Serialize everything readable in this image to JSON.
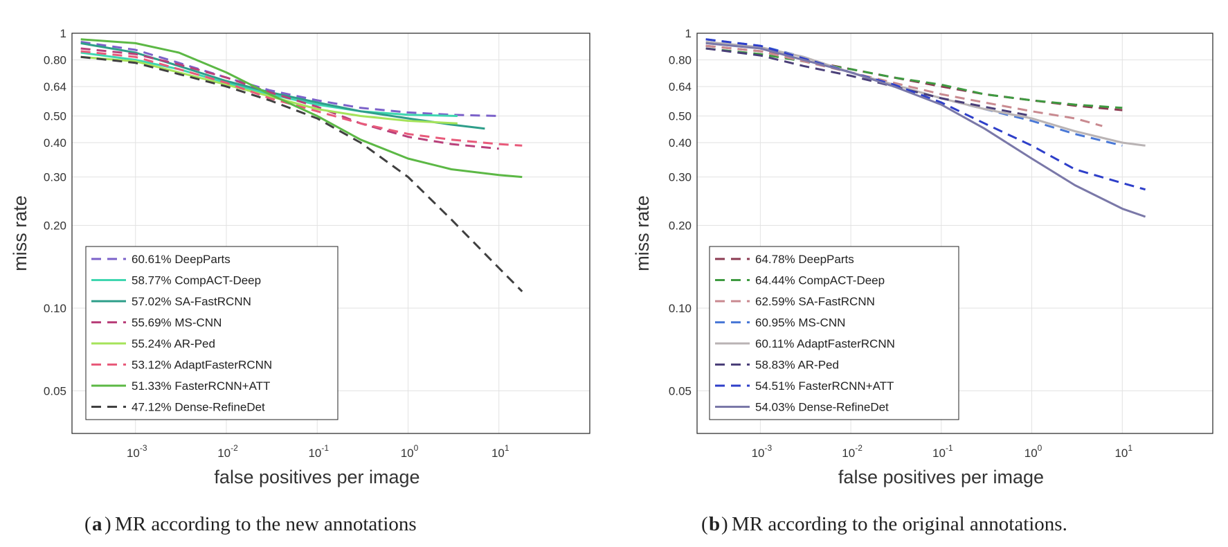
{
  "chart_data": [
    {
      "type": "line",
      "panel_letter": "a",
      "caption": "MR according to the new annotations",
      "xlabel": "false positives per image",
      "ylabel": "miss rate",
      "xscale": "log",
      "yscale": "log",
      "xlim": [
        0.0002,
        100
      ],
      "ylim": [
        0.035,
        1
      ],
      "xticks": [
        {
          "value": 0.001,
          "base": "10",
          "exp": "-3"
        },
        {
          "value": 0.01,
          "base": "10",
          "exp": "-2"
        },
        {
          "value": 0.1,
          "base": "10",
          "exp": "-1"
        },
        {
          "value": 1,
          "base": "10",
          "exp": "0"
        },
        {
          "value": 10,
          "base": "10",
          "exp": "1"
        }
      ],
      "yticks": [
        {
          "value": 1,
          "label": "1"
        },
        {
          "value": 0.8,
          "label": "0.80"
        },
        {
          "value": 0.64,
          "label": "0.64"
        },
        {
          "value": 0.5,
          "label": "0.50"
        },
        {
          "value": 0.4,
          "label": "0.40"
        },
        {
          "value": 0.3,
          "label": "0.30"
        },
        {
          "value": 0.2,
          "label": "0.20"
        },
        {
          "value": 0.1,
          "label": "0.10"
        },
        {
          "value": 0.05,
          "label": "0.05"
        }
      ],
      "grid": true,
      "legend_position": "bottom-left",
      "series": [
        {
          "name": "60.61% DeepParts",
          "color": "#7b61c9",
          "dashed": true,
          "x": [
            0.00025,
            0.001,
            0.003,
            0.01,
            0.03,
            0.1,
            0.3,
            1,
            3,
            10
          ],
          "y": [
            0.93,
            0.87,
            0.78,
            0.69,
            0.62,
            0.57,
            0.535,
            0.515,
            0.505,
            0.5
          ]
        },
        {
          "name": "58.77% CompACT-Deep",
          "color": "#3fd6b0",
          "dashed": false,
          "x": [
            0.00025,
            0.001,
            0.003,
            0.01,
            0.03,
            0.1,
            0.3,
            1,
            3.5
          ],
          "y": [
            0.85,
            0.8,
            0.74,
            0.66,
            0.6,
            0.55,
            0.52,
            0.505,
            0.5
          ]
        },
        {
          "name": "57.02% SA-FastRCNN",
          "color": "#2e9e8a",
          "dashed": false,
          "x": [
            0.00025,
            0.001,
            0.003,
            0.01,
            0.03,
            0.1,
            0.3,
            1,
            3,
            7
          ],
          "y": [
            0.92,
            0.85,
            0.76,
            0.67,
            0.61,
            0.56,
            0.52,
            0.49,
            0.465,
            0.45
          ]
        },
        {
          "name": "55.69% MS-CNN",
          "color": "#b9407a",
          "dashed": true,
          "x": [
            0.00025,
            0.001,
            0.003,
            0.01,
            0.03,
            0.1,
            0.3,
            1,
            3,
            10
          ],
          "y": [
            0.88,
            0.84,
            0.77,
            0.69,
            0.61,
            0.54,
            0.47,
            0.42,
            0.395,
            0.38
          ]
        },
        {
          "name": "55.24% AR-Ped",
          "color": "#a5e35a",
          "dashed": false,
          "x": [
            0.00025,
            0.001,
            0.003,
            0.01,
            0.03,
            0.1,
            0.3,
            1,
            3.5
          ],
          "y": [
            0.82,
            0.79,
            0.72,
            0.65,
            0.59,
            0.53,
            0.5,
            0.48,
            0.47
          ]
        },
        {
          "name": "53.12% AdaptFasterRCNN",
          "color": "#e85a7a",
          "dashed": true,
          "x": [
            0.00025,
            0.001,
            0.003,
            0.01,
            0.03,
            0.1,
            0.3,
            1,
            3,
            10,
            18
          ],
          "y": [
            0.86,
            0.82,
            0.74,
            0.66,
            0.58,
            0.52,
            0.47,
            0.43,
            0.41,
            0.395,
            0.39
          ]
        },
        {
          "name": "51.33% FasterRCNN+ATT",
          "color": "#5cb845",
          "dashed": false,
          "x": [
            0.00025,
            0.001,
            0.003,
            0.01,
            0.03,
            0.1,
            0.3,
            1,
            3,
            10,
            18
          ],
          "y": [
            0.95,
            0.92,
            0.85,
            0.72,
            0.6,
            0.5,
            0.41,
            0.35,
            0.32,
            0.305,
            0.3
          ]
        },
        {
          "name": "47.12% Dense-RefineDet",
          "color": "#404040",
          "dashed": true,
          "x": [
            0.00025,
            0.001,
            0.003,
            0.01,
            0.03,
            0.1,
            0.3,
            1,
            3,
            10,
            18
          ],
          "y": [
            0.82,
            0.78,
            0.71,
            0.64,
            0.57,
            0.49,
            0.4,
            0.3,
            0.21,
            0.14,
            0.115
          ]
        }
      ]
    },
    {
      "type": "line",
      "panel_letter": "b",
      "caption": "MR according to the original annotations.",
      "xlabel": "false positives per image",
      "ylabel": "miss rate",
      "xscale": "log",
      "yscale": "log",
      "xlim": [
        0.0002,
        100
      ],
      "ylim": [
        0.035,
        1
      ],
      "xticks": [
        {
          "value": 0.001,
          "base": "10",
          "exp": "-3"
        },
        {
          "value": 0.01,
          "base": "10",
          "exp": "-2"
        },
        {
          "value": 0.1,
          "base": "10",
          "exp": "-1"
        },
        {
          "value": 1,
          "base": "10",
          "exp": "0"
        },
        {
          "value": 10,
          "base": "10",
          "exp": "1"
        }
      ],
      "yticks": [
        {
          "value": 1,
          "label": "1"
        },
        {
          "value": 0.8,
          "label": "0.80"
        },
        {
          "value": 0.64,
          "label": "0.64"
        },
        {
          "value": 0.5,
          "label": "0.50"
        },
        {
          "value": 0.4,
          "label": "0.40"
        },
        {
          "value": 0.3,
          "label": "0.30"
        },
        {
          "value": 0.2,
          "label": "0.20"
        },
        {
          "value": 0.1,
          "label": "0.10"
        },
        {
          "value": 0.05,
          "label": "0.05"
        }
      ],
      "grid": true,
      "legend_position": "bottom-left",
      "series": [
        {
          "name": "64.78% DeepParts",
          "color": "#8b3a52",
          "dashed": true,
          "x": [
            0.00025,
            0.001,
            0.003,
            0.01,
            0.03,
            0.1,
            0.3,
            1,
            3,
            10
          ],
          "y": [
            0.9,
            0.86,
            0.8,
            0.74,
            0.69,
            0.64,
            0.6,
            0.57,
            0.545,
            0.525
          ]
        },
        {
          "name": "64.44% CompACT-Deep",
          "color": "#3e9a40",
          "dashed": true,
          "x": [
            0.00025,
            0.001,
            0.003,
            0.01,
            0.03,
            0.1,
            0.3,
            1,
            3,
            10
          ],
          "y": [
            0.88,
            0.84,
            0.79,
            0.74,
            0.69,
            0.65,
            0.6,
            0.57,
            0.55,
            0.535
          ]
        },
        {
          "name": "62.59% SA-FastRCNN",
          "color": "#c98a90",
          "dashed": true,
          "x": [
            0.00025,
            0.001,
            0.003,
            0.01,
            0.03,
            0.1,
            0.3,
            1,
            3,
            6
          ],
          "y": [
            0.9,
            0.86,
            0.79,
            0.72,
            0.66,
            0.6,
            0.56,
            0.52,
            0.49,
            0.46
          ]
        },
        {
          "name": "60.95% MS-CNN",
          "color": "#4a78d6",
          "dashed": true,
          "x": [
            0.00025,
            0.001,
            0.003,
            0.01,
            0.03,
            0.1,
            0.3,
            1,
            3,
            10
          ],
          "y": [
            0.95,
            0.9,
            0.82,
            0.72,
            0.65,
            0.58,
            0.53,
            0.48,
            0.43,
            0.39
          ]
        },
        {
          "name": "60.11% AdaptFasterRCNN",
          "color": "#b9b3b4",
          "dashed": false,
          "x": [
            0.00025,
            0.001,
            0.003,
            0.01,
            0.03,
            0.1,
            0.3,
            1,
            3,
            10,
            18
          ],
          "y": [
            0.93,
            0.89,
            0.82,
            0.72,
            0.65,
            0.58,
            0.53,
            0.49,
            0.44,
            0.4,
            0.39
          ]
        },
        {
          "name": "58.83% AR-Ped",
          "color": "#4a3f78",
          "dashed": true,
          "x": [
            0.00025,
            0.001,
            0.003,
            0.01,
            0.03,
            0.1,
            0.3,
            1
          ],
          "y": [
            0.88,
            0.83,
            0.76,
            0.7,
            0.64,
            0.58,
            0.54,
            0.5
          ]
        },
        {
          "name": "54.51% FasterRCNN+ATT",
          "color": "#2e3fc9",
          "dashed": true,
          "x": [
            0.00025,
            0.001,
            0.003,
            0.01,
            0.03,
            0.1,
            0.3,
            1,
            3,
            10,
            18
          ],
          "y": [
            0.95,
            0.9,
            0.81,
            0.72,
            0.65,
            0.56,
            0.47,
            0.39,
            0.32,
            0.285,
            0.27
          ]
        },
        {
          "name": "54.03% Dense-RefineDet",
          "color": "#7a78a8",
          "dashed": false,
          "x": [
            0.00025,
            0.001,
            0.003,
            0.01,
            0.03,
            0.1,
            0.3,
            1,
            3,
            10,
            18
          ],
          "y": [
            0.92,
            0.88,
            0.8,
            0.72,
            0.64,
            0.55,
            0.45,
            0.35,
            0.28,
            0.23,
            0.215
          ]
        }
      ]
    }
  ]
}
